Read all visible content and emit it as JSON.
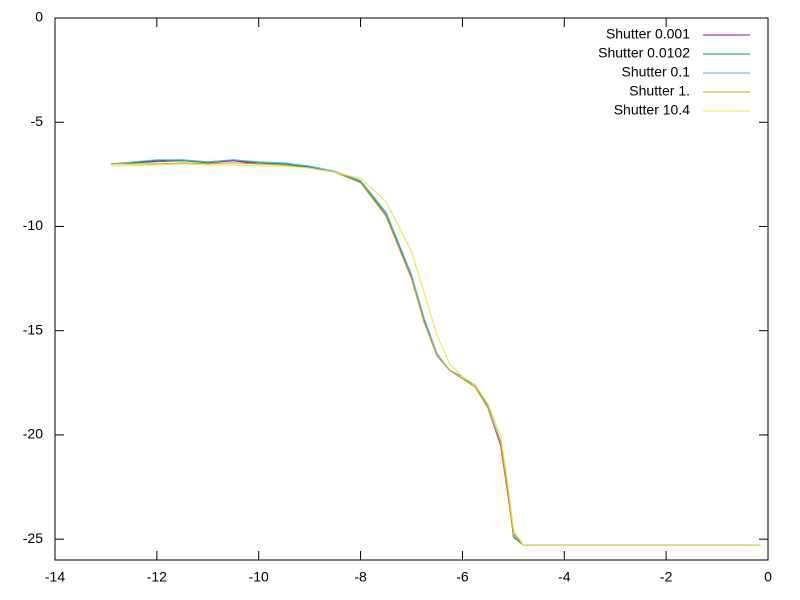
{
  "chart_data": {
    "type": "line",
    "x": [
      -12.9,
      -12,
      -11.5,
      -11,
      -10.5,
      -10,
      -9.5,
      -9,
      -8.5,
      -8,
      -7.5,
      -7,
      -6.75,
      -6.5,
      -6.25,
      -6,
      -5.75,
      -5.5,
      -5.25,
      -5.1,
      -5,
      -4.8,
      -4.5,
      -4,
      -2,
      -0.15
    ],
    "series": [
      {
        "name": "Shutter 0.001",
        "color": "#9400d3",
        "values": [
          -7,
          -6.85,
          -6.8,
          -6.95,
          -6.85,
          -7,
          -7,
          -7.2,
          -7.4,
          -7.9,
          -9.5,
          -12.5,
          -14.6,
          -16.2,
          -16.9,
          -17.3,
          -17.7,
          -18.7,
          -20.5,
          -23,
          -24.8,
          -25.3,
          -25.3,
          -25.3,
          -25.3,
          -25.3
        ]
      },
      {
        "name": "Shutter 0.0102",
        "color": "#009e73",
        "values": [
          -7,
          -6.9,
          -6.85,
          -6.95,
          -6.8,
          -6.95,
          -7,
          -7.15,
          -7.4,
          -7.85,
          -9.4,
          -12.4,
          -14.5,
          -16.2,
          -16.9,
          -17.3,
          -17.6,
          -18.6,
          -20.4,
          -22.8,
          -24.9,
          -25.3,
          -25.3,
          -25.3,
          -25.3,
          -25.3
        ]
      },
      {
        "name": "Shutter 0.1",
        "color": "#56b4e9",
        "values": [
          -7,
          -6.8,
          -6.8,
          -6.9,
          -6.8,
          -6.9,
          -6.95,
          -7.1,
          -7.35,
          -7.8,
          -9.3,
          -12.3,
          -14.4,
          -16.1,
          -16.9,
          -17.2,
          -17.6,
          -18.6,
          -20.3,
          -22.7,
          -24.7,
          -25.3,
          -25.3,
          -25.3,
          -25.3,
          -25.3
        ]
      },
      {
        "name": "Shutter 1.",
        "color": "#e69f00",
        "values": [
          -7,
          -7,
          -6.95,
          -7,
          -6.95,
          -7,
          -7.05,
          -7.2,
          -7.4,
          -7.9,
          -9.5,
          -12.5,
          -14.6,
          -16.2,
          -16.9,
          -17.3,
          -17.7,
          -18.7,
          -20.4,
          -22.9,
          -24.8,
          -25.3,
          -25.3,
          -25.3,
          -25.3,
          -25.3
        ]
      },
      {
        "name": "Shutter 10.4",
        "color": "#f0e442",
        "values": [
          -7.1,
          -7.05,
          -7,
          -7.05,
          -7.05,
          -7.1,
          -7.1,
          -7.2,
          -7.4,
          -7.7,
          -8.8,
          -11.2,
          -13.2,
          -15.2,
          -16.6,
          -17.2,
          -17.6,
          -18.5,
          -20,
          -22.5,
          -24.5,
          -25.3,
          -25.3,
          -25.3,
          -25.3,
          -25.3
        ]
      }
    ],
    "xlim": [
      -14,
      0
    ],
    "xticks": [
      -14,
      -12,
      -10,
      -8,
      -6,
      -4,
      -2,
      0
    ],
    "ylim": [
      -26,
      0
    ],
    "yticks": [
      0,
      -5,
      -10,
      -15,
      -20,
      -25
    ],
    "legend": "top-right"
  }
}
